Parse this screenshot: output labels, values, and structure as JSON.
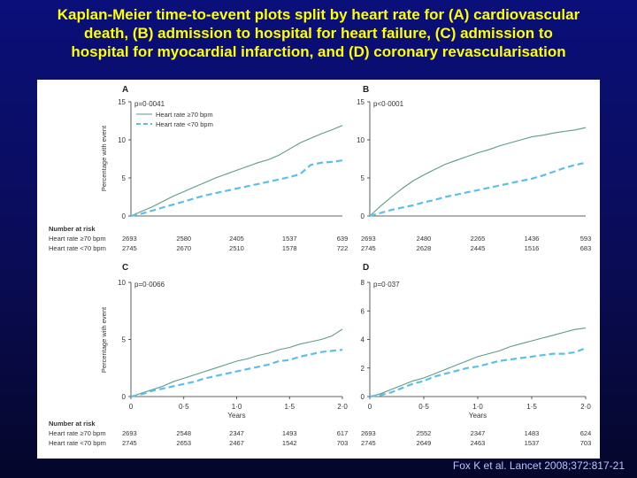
{
  "slide": {
    "title_lines": [
      "Kaplan-Meier time-to-event plots split by heart rate for (A) cardiovascular",
      "death, (B) admission to hospital for heart failure, (C) admission to",
      "hospital for myocardial infarction, and (D) coronary revascularisation"
    ],
    "citation": "Fox K et al. Lancet 2008;372:817-21"
  },
  "colors": {
    "background_top": "#0a0f7a",
    "title": "#ffff00",
    "series_high": "#5f9a86",
    "series_low": "#5bc0e6",
    "citation": "#b8c4ff"
  },
  "shared": {
    "ylabel": "Percentage with event",
    "xlabel": "Years",
    "number_at_risk_label": "Number at risk",
    "risk_row_labels": [
      "Heart rate ≥70 bpm",
      "Heart rate <70 bpm"
    ]
  },
  "chart_data": [
    {
      "type": "line",
      "panel": "A",
      "p_value": "p=0·0041",
      "legend": [
        "Heart rate ≥70 bpm",
        "Heart rate <70 bpm"
      ],
      "legend_position": "top-left",
      "ylim": [
        0,
        15
      ],
      "yticks": [
        "0",
        "5",
        "10",
        "15"
      ],
      "xlim": [
        0,
        2
      ],
      "series": [
        {
          "name": "Heart rate ≥70 bpm",
          "style": "solid",
          "x": [
            0,
            0.1,
            0.2,
            0.3,
            0.4,
            0.5,
            0.6,
            0.7,
            0.8,
            0.9,
            1.0,
            1.1,
            1.2,
            1.3,
            1.4,
            1.5,
            1.6,
            1.7,
            1.8,
            1.9,
            2.0
          ],
          "values": [
            0,
            0.6,
            1.2,
            1.9,
            2.6,
            3.2,
            3.8,
            4.4,
            5.0,
            5.5,
            6.0,
            6.5,
            7.0,
            7.4,
            8.0,
            8.8,
            9.6,
            10.2,
            10.8,
            11.3,
            11.9
          ]
        },
        {
          "name": "Heart rate <70 bpm",
          "style": "dashed",
          "x": [
            0,
            0.1,
            0.2,
            0.3,
            0.4,
            0.5,
            0.6,
            0.7,
            0.8,
            0.9,
            1.0,
            1.1,
            1.2,
            1.3,
            1.4,
            1.5,
            1.6,
            1.7,
            1.8,
            1.9,
            2.0
          ],
          "values": [
            0,
            0.3,
            0.7,
            1.1,
            1.5,
            1.9,
            2.3,
            2.7,
            3.0,
            3.3,
            3.6,
            3.9,
            4.2,
            4.5,
            4.8,
            5.1,
            5.5,
            6.7,
            7.0,
            7.1,
            7.3
          ]
        }
      ],
      "risk_numbers": {
        "high": [
          "2693",
          "2580",
          "2405",
          "1537",
          "639"
        ],
        "low": [
          "2745",
          "2670",
          "2510",
          "1578",
          "722"
        ]
      }
    },
    {
      "type": "line",
      "panel": "B",
      "p_value": "p<0·0001",
      "ylim": [
        0,
        15
      ],
      "yticks": [
        "0",
        "5",
        "10",
        "15"
      ],
      "xlim": [
        0,
        2
      ],
      "series": [
        {
          "name": "Heart rate ≥70 bpm",
          "style": "solid",
          "x": [
            0,
            0.1,
            0.2,
            0.3,
            0.4,
            0.5,
            0.6,
            0.7,
            0.8,
            0.9,
            1.0,
            1.1,
            1.2,
            1.3,
            1.4,
            1.5,
            1.6,
            1.7,
            1.8,
            1.9,
            2.0
          ],
          "values": [
            0,
            1.3,
            2.5,
            3.6,
            4.6,
            5.4,
            6.1,
            6.8,
            7.3,
            7.8,
            8.3,
            8.7,
            9.2,
            9.6,
            10.0,
            10.4,
            10.6,
            10.9,
            11.1,
            11.3,
            11.6
          ]
        },
        {
          "name": "Heart rate <70 bpm",
          "style": "dashed",
          "x": [
            0,
            0.1,
            0.2,
            0.3,
            0.4,
            0.5,
            0.6,
            0.7,
            0.8,
            0.9,
            1.0,
            1.1,
            1.2,
            1.3,
            1.4,
            1.5,
            1.6,
            1.7,
            1.8,
            1.9,
            2.0
          ],
          "values": [
            0,
            0.4,
            0.8,
            1.1,
            1.4,
            1.8,
            2.1,
            2.5,
            2.8,
            3.1,
            3.4,
            3.7,
            4.0,
            4.3,
            4.6,
            4.9,
            5.3,
            5.8,
            6.3,
            6.7,
            7.0
          ]
        }
      ],
      "risk_numbers": {
        "high": [
          "2693",
          "2480",
          "2265",
          "1436",
          "593"
        ],
        "low": [
          "2745",
          "2628",
          "2445",
          "1516",
          "683"
        ]
      }
    },
    {
      "type": "line",
      "panel": "C",
      "p_value": "p=0·0066",
      "ylim": [
        0,
        10
      ],
      "yticks": [
        "0",
        "5",
        "10"
      ],
      "xlim": [
        0,
        2
      ],
      "xticks": [
        "0",
        "0·5",
        "1·0",
        "1·5",
        "2·0"
      ],
      "series": [
        {
          "name": "Heart rate ≥70 bpm",
          "style": "solid",
          "x": [
            0,
            0.1,
            0.2,
            0.3,
            0.4,
            0.5,
            0.6,
            0.7,
            0.8,
            0.9,
            1.0,
            1.1,
            1.2,
            1.3,
            1.4,
            1.5,
            1.6,
            1.7,
            1.8,
            1.9,
            2.0
          ],
          "values": [
            0,
            0.3,
            0.6,
            0.9,
            1.3,
            1.6,
            1.9,
            2.2,
            2.5,
            2.8,
            3.1,
            3.3,
            3.6,
            3.8,
            4.1,
            4.3,
            4.6,
            4.8,
            5.0,
            5.3,
            5.9
          ]
        },
        {
          "name": "Heart rate <70 bpm",
          "style": "dashed",
          "x": [
            0,
            0.1,
            0.2,
            0.3,
            0.4,
            0.5,
            0.6,
            0.7,
            0.8,
            0.9,
            1.0,
            1.1,
            1.2,
            1.3,
            1.4,
            1.5,
            1.6,
            1.7,
            1.8,
            1.9,
            2.0
          ],
          "values": [
            0,
            0.2,
            0.5,
            0.7,
            0.9,
            1.1,
            1.3,
            1.6,
            1.8,
            2.0,
            2.2,
            2.4,
            2.6,
            2.8,
            3.1,
            3.2,
            3.5,
            3.7,
            3.9,
            4.0,
            4.1
          ]
        }
      ],
      "risk_numbers": {
        "high": [
          "2693",
          "2548",
          "2347",
          "1493",
          "617"
        ],
        "low": [
          "2745",
          "2653",
          "2467",
          "1542",
          "703"
        ]
      }
    },
    {
      "type": "line",
      "panel": "D",
      "p_value": "p=0·037",
      "ylim": [
        0,
        8
      ],
      "yticks": [
        "0",
        "2",
        "4",
        "6",
        "8"
      ],
      "xlim": [
        0,
        2
      ],
      "xticks": [
        "0",
        "0·5",
        "1·0",
        "1·5",
        "2·0"
      ],
      "series": [
        {
          "name": "Heart rate ≥70 bpm",
          "style": "solid",
          "x": [
            0,
            0.1,
            0.2,
            0.3,
            0.4,
            0.5,
            0.6,
            0.7,
            0.8,
            0.9,
            1.0,
            1.1,
            1.2,
            1.3,
            1.4,
            1.5,
            1.6,
            1.7,
            1.8,
            1.9,
            2.0
          ],
          "values": [
            0,
            0.2,
            0.5,
            0.8,
            1.1,
            1.3,
            1.6,
            1.9,
            2.2,
            2.5,
            2.8,
            3.0,
            3.2,
            3.5,
            3.7,
            3.9,
            4.1,
            4.3,
            4.5,
            4.7,
            4.8
          ]
        },
        {
          "name": "Heart rate <70 bpm",
          "style": "dashed",
          "x": [
            0,
            0.1,
            0.2,
            0.3,
            0.4,
            0.5,
            0.6,
            0.7,
            0.8,
            0.9,
            1.0,
            1.1,
            1.2,
            1.3,
            1.4,
            1.5,
            1.6,
            1.7,
            1.8,
            1.9,
            2.0
          ],
          "values": [
            0,
            0.1,
            0.3,
            0.6,
            0.9,
            1.1,
            1.4,
            1.6,
            1.8,
            2.0,
            2.1,
            2.3,
            2.5,
            2.6,
            2.7,
            2.8,
            2.9,
            3.0,
            3.0,
            3.1,
            3.4
          ]
        }
      ],
      "risk_numbers": {
        "high": [
          "2693",
          "2552",
          "2347",
          "1483",
          "624"
        ],
        "low": [
          "2745",
          "2649",
          "2463",
          "1537",
          "703"
        ]
      }
    }
  ]
}
